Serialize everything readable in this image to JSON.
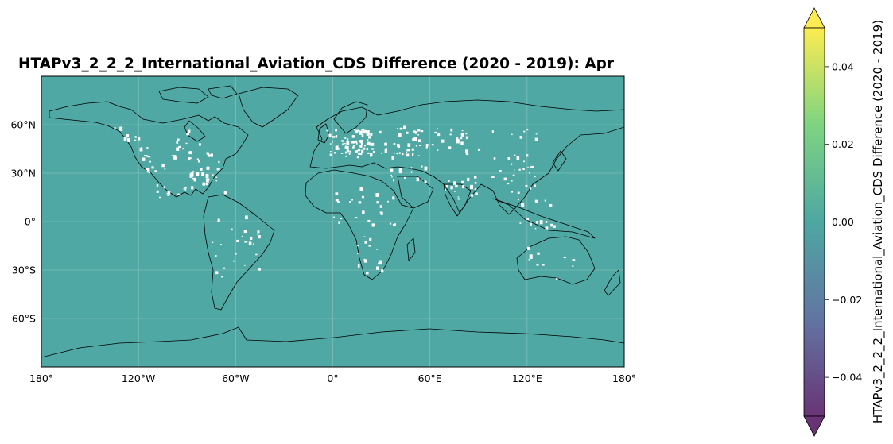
{
  "map": {
    "title": "HTAPv3_2_2_2_International_Aviation_CDS Difference (2020 - 2019): Apr",
    "projection": "PlateCarree",
    "ocean_fill_color": "#4fa8a3",
    "land_fill_color": "#4fa8a3",
    "coastline_color": "#000000",
    "missing_data_color": "#ffffff",
    "gridlines": true,
    "x_ticks": [
      "180°",
      "120°W",
      "60°W",
      "0°",
      "60°E",
      "120°E",
      "180°"
    ],
    "y_ticks": [
      "60°N",
      "30°N",
      "0°",
      "30°S",
      "60°S"
    ]
  },
  "chart_data": {
    "type": "heatmap",
    "title": "HTAPv3_2_2_2_International_Aviation_CDS Difference (2020 - 2019): Apr",
    "xlim": [
      -180,
      180
    ],
    "ylim": [
      -90,
      90
    ],
    "x_tick_values": [
      -180,
      -120,
      -60,
      0,
      60,
      120,
      180
    ],
    "y_tick_values": [
      60,
      30,
      0,
      -30,
      -60
    ],
    "uniform_value": 0.0,
    "colorbar": {
      "label": "HTAPv3_2_2_2_International_Aviation_CDS Difference (2020 - 2019)",
      "colormap": "viridis",
      "vmin": -0.05,
      "vmax": 0.05,
      "extend": "both",
      "ticks": [
        0.04,
        0.02,
        0.0,
        -0.02,
        -0.04
      ],
      "tick_labels": [
        "0.04",
        "0.02",
        "0.00",
        "−0.02",
        "−0.04"
      ],
      "colors": [
        "#440154",
        "#3b528b",
        "#21918c",
        "#5ec962",
        "#fde725"
      ]
    }
  }
}
